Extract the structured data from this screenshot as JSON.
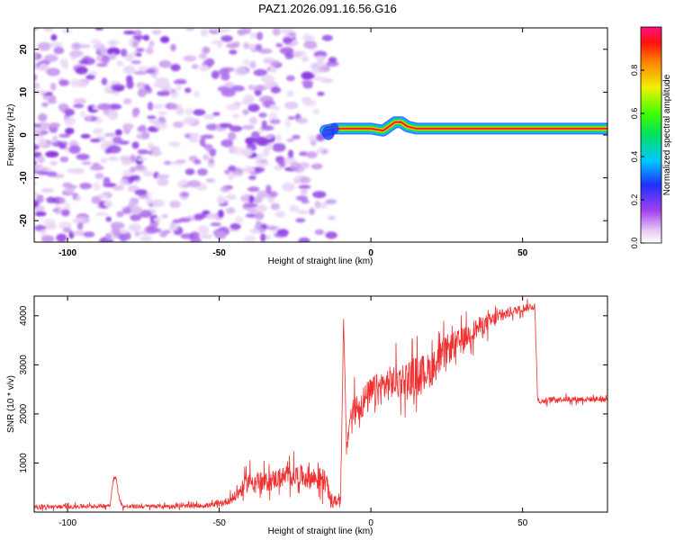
{
  "title": "PAZ1.2026.091.16.56.G16",
  "chart_data": [
    {
      "type": "heatmap",
      "xlabel": "Height of straight line (km)",
      "ylabel": "Frequency (Hz)",
      "xlim": [
        -111,
        78
      ],
      "ylim": [
        -25,
        25
      ],
      "xticks": [
        -100,
        -50,
        0,
        50
      ],
      "yticks": [
        -20,
        -10,
        0,
        10,
        20
      ],
      "colorbar": {
        "label": "Normalized spectral amplitude",
        "range": [
          0,
          1
        ],
        "ticks": [
          "0.0",
          "0.2",
          "0.4",
          "0.6",
          "0.8"
        ]
      },
      "noise_region_x": [
        -111,
        -15
      ],
      "signal_track": {
        "x": [
          -15,
          -12,
          -8,
          -5,
          0,
          4,
          6,
          8,
          10,
          12,
          15,
          20,
          25,
          30,
          40,
          55,
          78
        ],
        "freq": [
          1,
          1.5,
          1.5,
          1.5,
          1.5,
          1,
          2,
          3,
          3,
          2,
          1.5,
          1.5,
          1.5,
          1.5,
          1.5,
          1.5,
          1.5
        ]
      }
    },
    {
      "type": "line",
      "xlabel": "Height of straight line (km)",
      "ylabel": "SNR (10 * v/v)",
      "xlim": [
        -111,
        78
      ],
      "ylim": [
        0,
        4400
      ],
      "xticks": [
        -100,
        -50,
        0,
        50
      ],
      "yticks": [
        1000,
        2000,
        3000,
        4000
      ],
      "color": "#f03030",
      "series": [
        {
          "name": "SNR",
          "x": [
            -111,
            -90,
            -86,
            -85,
            -84,
            -83,
            -82,
            -80,
            -70,
            -60,
            -50,
            -45,
            -40,
            -35,
            -30,
            -25,
            -20,
            -15,
            -13,
            -10,
            -9,
            -8,
            -7,
            -5,
            0,
            5,
            10,
            15,
            20,
            25,
            30,
            35,
            40,
            45,
            50,
            54,
            55,
            56,
            60,
            70,
            78
          ],
          "y": [
            100,
            120,
            140,
            650,
            700,
            300,
            120,
            110,
            120,
            120,
            150,
            300,
            650,
            600,
            700,
            750,
            700,
            650,
            200,
            250,
            3900,
            1200,
            1900,
            2100,
            2400,
            2600,
            2700,
            2800,
            2900,
            3300,
            3500,
            3750,
            3900,
            4050,
            4150,
            4200,
            2300,
            2250,
            2300,
            2300,
            2300
          ],
          "noise_amp": [
            60,
            60,
            60,
            60,
            60,
            60,
            60,
            60,
            60,
            60,
            80,
            150,
            300,
            280,
            300,
            320,
            330,
            350,
            150,
            150,
            100,
            250,
            400,
            450,
            500,
            500,
            500,
            550,
            500,
            450,
            350,
            300,
            250,
            150,
            120,
            100,
            80,
            80,
            80,
            80,
            80
          ]
        }
      ]
    }
  ]
}
